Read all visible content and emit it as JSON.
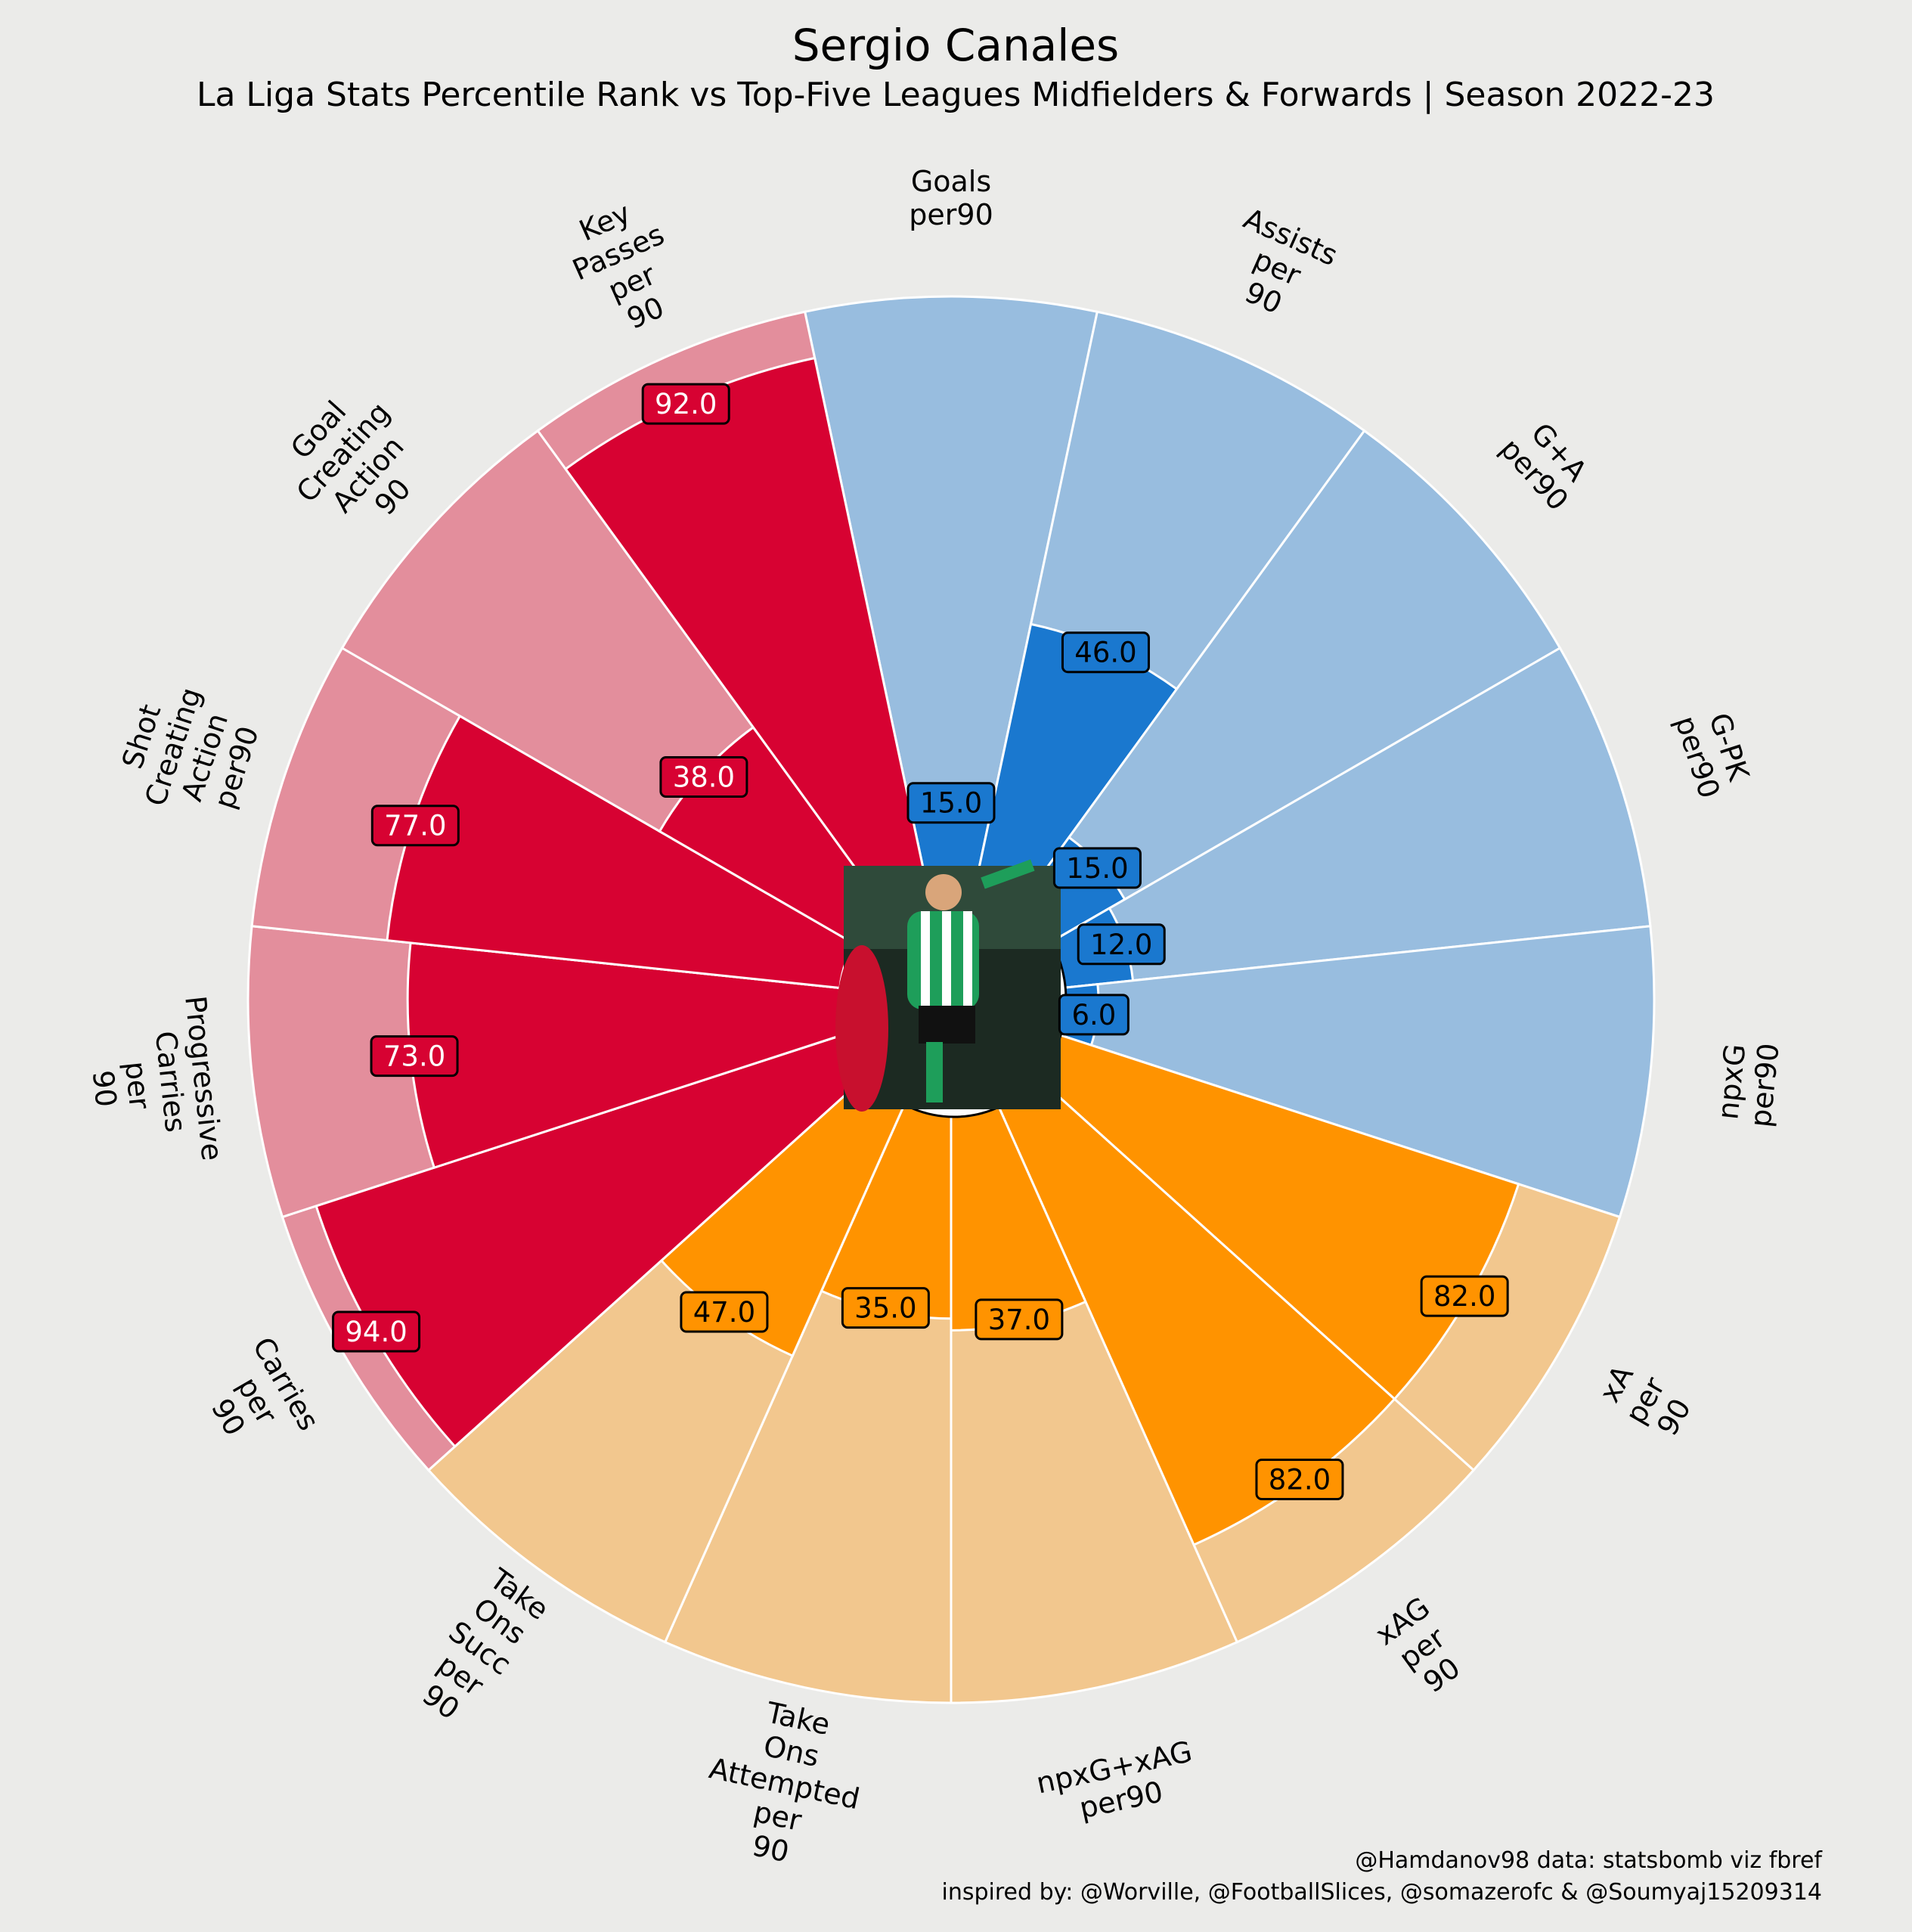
{
  "header": {
    "title": "Sergio Canales",
    "subtitle": "La Liga Stats Percentile Rank vs Top-Five Leagues Midfielders & Forwards | Season 2022-23"
  },
  "credits": {
    "line1": "@Hamdanov98 data: statsbomb viz fbref",
    "line2": "inspired by: @Worville, @FootballSlices, @somazerofc & @Soumyaj15209314"
  },
  "colors": {
    "background": "#ebebe9",
    "attacking": "#1a78cf",
    "attacking_light": "#98bddf",
    "possession": "#ff9300",
    "possession_light": "#f2c78e",
    "passing": "#d70232",
    "passing_light": "#e38e9c",
    "slice_edge": "#ffffff"
  },
  "chart_data": {
    "type": "pizza",
    "range": [
      0,
      100
    ],
    "center_image": "player-photo",
    "params": [
      {
        "label": "Goals\nper90",
        "value": 15.0,
        "group": "attacking"
      },
      {
        "label": "Assists\nper\n90",
        "value": 46.0,
        "group": "attacking"
      },
      {
        "label": "G+A\nper90",
        "value": 15.0,
        "group": "attacking"
      },
      {
        "label": "G-PK\nper90",
        "value": 12.0,
        "group": "attacking"
      },
      {
        "label": "npxG\nper90",
        "value": 6.0,
        "group": "attacking"
      },
      {
        "label": "xA\nper\n90",
        "value": 82.0,
        "group": "possession"
      },
      {
        "label": "xAG\nper\n90",
        "value": 82.0,
        "group": "possession"
      },
      {
        "label": "npxG+xAG\nper90",
        "value": 37.0,
        "group": "possession"
      },
      {
        "label": "Take\nOns\nAttempted\nper\n90",
        "value": 35.0,
        "group": "possession"
      },
      {
        "label": "Take\nOns\nSucc\nper\n90",
        "value": 47.0,
        "group": "possession"
      },
      {
        "label": "Carries\nper\n90",
        "value": 94.0,
        "group": "passing"
      },
      {
        "label": "Progressive\nCarries\nper\n90",
        "value": 73.0,
        "group": "passing"
      },
      {
        "label": "Shot\nCreating\nAction\nper90",
        "value": 77.0,
        "group": "passing"
      },
      {
        "label": "Goal\nCreating\nAction\n90",
        "value": 38.0,
        "group": "passing"
      },
      {
        "label": "Key\nPasses\nper\n90",
        "value": 92.0,
        "group": "passing"
      }
    ]
  }
}
